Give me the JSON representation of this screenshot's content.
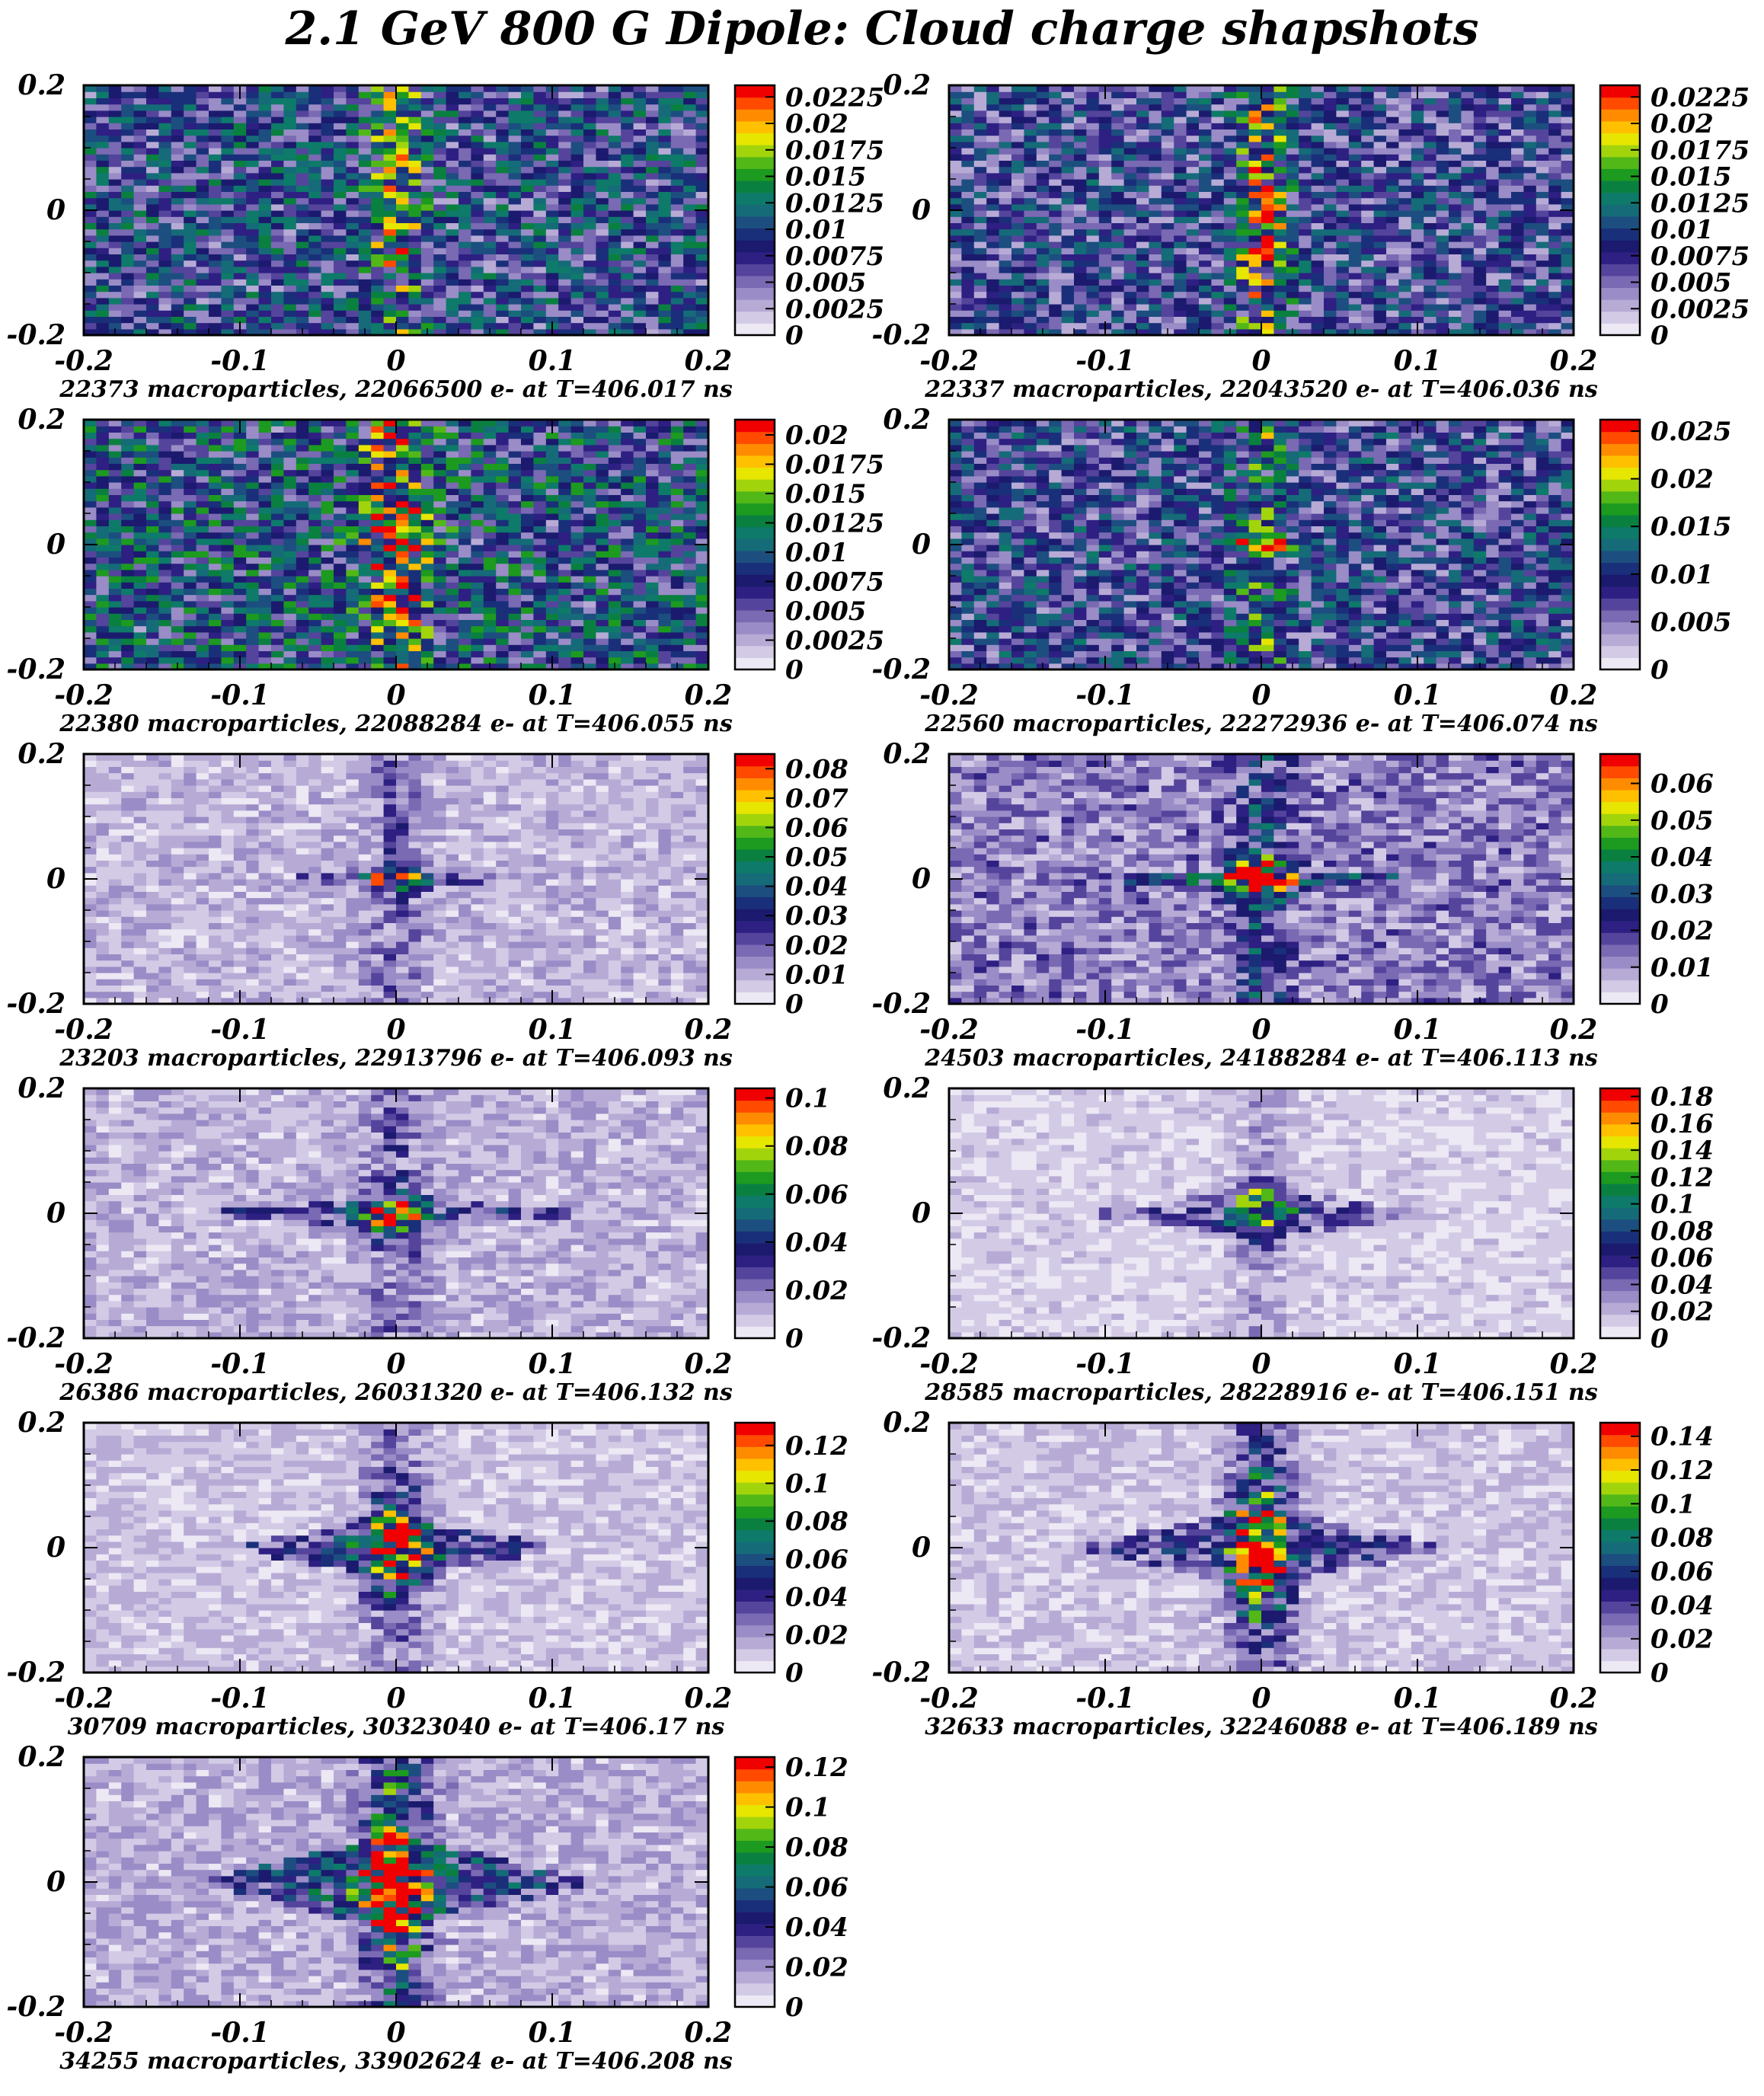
{
  "title": "2.1 GeV 800 G Dipole: Cloud charge shapshots",
  "colors": {
    "palette": [
      "#ffffff",
      "#ece8f4",
      "#d3cbe6",
      "#b7abd6",
      "#9a8cc6",
      "#7a69b3",
      "#55449c",
      "#2e1f82",
      "#1b1a6e",
      "#1a2f7a",
      "#1c4e80",
      "#156b78",
      "#0e7a6a",
      "#0a8040",
      "#1d9a20",
      "#52b818",
      "#a2d40c",
      "#e6e600",
      "#ffc000",
      "#ff8c00",
      "#ff4a00",
      "#f00000"
    ],
    "frame": "#000000"
  },
  "chart_data": [
    {
      "type": "heatmap",
      "x_range": [
        -0.2,
        0.2
      ],
      "y_range": [
        -0.2,
        0.2
      ],
      "x_ticks": [
        "-0.2",
        "-0.1",
        "0",
        "0.1",
        "0.2"
      ],
      "y_ticks": [
        "-0.2",
        "0",
        "0.2"
      ],
      "z_range": [
        0,
        0.0236
      ],
      "z_ticks": [
        "0",
        "0.0025",
        "0.005",
        "0.0075",
        "0.01",
        "0.0125",
        "0.015",
        "0.0175",
        "0.02",
        "0.0225"
      ],
      "caption": "22373 macroparticles, 22066500 e- at T=406.017 ns",
      "macroparticles": 22373,
      "electrons": 22066500,
      "time_ns": 406.017,
      "background_level": 0.0085,
      "stripe_level": 0.005,
      "core_level": 0.002,
      "core_half_height": 0.05,
      "wing_level": 0,
      "wing_half_width": 0.12,
      "wing_half_height": 0.02,
      "seed": 11
    },
    {
      "type": "heatmap",
      "x_range": [
        -0.2,
        0.2
      ],
      "y_range": [
        -0.2,
        0.2
      ],
      "x_ticks": [
        "-0.2",
        "-0.1",
        "0",
        "0.1",
        "0.2"
      ],
      "y_ticks": [
        "-0.2",
        "0",
        "0.2"
      ],
      "z_range": [
        0,
        0.0236
      ],
      "z_ticks": [
        "0",
        "0.0025",
        "0.005",
        "0.0075",
        "0.01",
        "0.0125",
        "0.015",
        "0.0175",
        "0.02",
        "0.0225"
      ],
      "caption": "22337 macroparticles, 22043520 e- at T=406.036 ns",
      "macroparticles": 22337,
      "electrons": 22043520,
      "time_ns": 406.036,
      "background_level": 0.0075,
      "stripe_level": 0.006,
      "core_level": 0.003,
      "core_half_height": 0.08,
      "wing_level": 0,
      "wing_half_width": 0.12,
      "wing_half_height": 0.02,
      "seed": 23
    },
    {
      "type": "heatmap",
      "x_range": [
        -0.2,
        0.2
      ],
      "y_range": [
        -0.2,
        0.2
      ],
      "x_ticks": [
        "-0.2",
        "-0.1",
        "0",
        "0.1",
        "0.2"
      ],
      "y_ticks": [
        "-0.2",
        "0",
        "0.2"
      ],
      "z_range": [
        0,
        0.0213
      ],
      "z_ticks": [
        "0",
        "0.0025",
        "0.005",
        "0.0075",
        "0.01",
        "0.0125",
        "0.015",
        "0.0175",
        "0.02"
      ],
      "caption": "22380 macroparticles, 22088284 e- at T=406.055 ns",
      "macroparticles": 22380,
      "electrons": 22088284,
      "time_ns": 406.055,
      "background_level": 0.0085,
      "stripe_level": 0.0065,
      "core_level": 0.004,
      "core_half_height": 0.06,
      "wing_level": 0,
      "wing_half_width": 0.12,
      "wing_half_height": 0.02,
      "seed": 37
    },
    {
      "type": "heatmap",
      "x_range": [
        -0.2,
        0.2
      ],
      "y_range": [
        -0.2,
        0.2
      ],
      "x_ticks": [
        "-0.2",
        "-0.1",
        "0",
        "0.1",
        "0.2"
      ],
      "y_ticks": [
        "-0.2",
        "0",
        "0.2"
      ],
      "z_range": [
        0,
        0.0262
      ],
      "z_ticks": [
        "0",
        "0.005",
        "0.01",
        "0.015",
        "0.02",
        "0.025"
      ],
      "caption": "22560 macroparticles, 22272936 e- at T=406.074 ns",
      "macroparticles": 22560,
      "electrons": 22272936,
      "time_ns": 406.074,
      "background_level": 0.0085,
      "stripe_level": 0.005,
      "core_level": 0.012,
      "core_half_height": 0.012,
      "wing_level": 0.004,
      "wing_half_width": 0.03,
      "wing_half_height": 0.008,
      "seed": 41
    },
    {
      "type": "heatmap",
      "x_range": [
        -0.2,
        0.2
      ],
      "y_range": [
        -0.2,
        0.2
      ],
      "x_ticks": [
        "-0.2",
        "-0.1",
        "0",
        "0.1",
        "0.2"
      ],
      "y_ticks": [
        "-0.2",
        "0",
        "0.2"
      ],
      "z_range": [
        0,
        0.085
      ],
      "z_ticks": [
        "0",
        "0.01",
        "0.02",
        "0.03",
        "0.04",
        "0.05",
        "0.06",
        "0.07",
        "0.08"
      ],
      "caption": "23203 macroparticles, 22913796 e- at T=406.093 ns",
      "macroparticles": 23203,
      "electrons": 22913796,
      "time_ns": 406.093,
      "background_level": 0.0085,
      "stripe_level": 0.01,
      "core_level": 0.035,
      "core_half_height": 0.012,
      "wing_level": 0.018,
      "wing_half_width": 0.11,
      "wing_half_height": 0.012,
      "seed": 53
    },
    {
      "type": "heatmap",
      "x_range": [
        -0.2,
        0.2
      ],
      "y_range": [
        -0.2,
        0.2
      ],
      "x_ticks": [
        "-0.2",
        "-0.1",
        "0",
        "0.1",
        "0.2"
      ],
      "y_ticks": [
        "-0.2",
        "0",
        "0.2"
      ],
      "z_range": [
        0,
        0.068
      ],
      "z_ticks": [
        "0",
        "0.01",
        "0.02",
        "0.03",
        "0.04",
        "0.05",
        "0.06"
      ],
      "caption": "24503 macroparticles, 24188284 e- at T=406.113 ns",
      "macroparticles": 24503,
      "electrons": 24188284,
      "time_ns": 406.113,
      "background_level": 0.012,
      "stripe_level": 0.012,
      "core_level": 0.048,
      "core_half_height": 0.02,
      "wing_level": 0.02,
      "wing_half_width": 0.13,
      "wing_half_height": 0.016,
      "seed": 67
    },
    {
      "type": "heatmap",
      "x_range": [
        -0.2,
        0.2
      ],
      "y_range": [
        -0.2,
        0.2
      ],
      "x_ticks": [
        "-0.2",
        "-0.1",
        "0",
        "0.1",
        "0.2"
      ],
      "y_ticks": [
        "-0.2",
        "0",
        "0.2"
      ],
      "z_range": [
        0,
        0.104
      ],
      "z_ticks": [
        "0",
        "0.02",
        "0.04",
        "0.06",
        "0.08",
        "0.1"
      ],
      "caption": "26386 macroparticles, 26031320 e- at T=406.132 ns",
      "macroparticles": 26386,
      "electrons": 26031320,
      "time_ns": 406.132,
      "background_level": 0.011,
      "stripe_level": 0.012,
      "core_level": 0.06,
      "core_half_height": 0.025,
      "wing_level": 0.026,
      "wing_half_width": 0.14,
      "wing_half_height": 0.025,
      "seed": 71
    },
    {
      "type": "heatmap",
      "x_range": [
        -0.2,
        0.2
      ],
      "y_range": [
        -0.2,
        0.2
      ],
      "x_ticks": [
        "-0.2",
        "-0.1",
        "0",
        "0.1",
        "0.2"
      ],
      "y_ticks": [
        "-0.2",
        "0",
        "0.2"
      ],
      "z_range": [
        0,
        0.186
      ],
      "z_ticks": [
        "0",
        "0.02",
        "0.04",
        "0.06",
        "0.08",
        "0.1",
        "0.12",
        "0.14",
        "0.16",
        "0.18"
      ],
      "caption": "28585 macroparticles, 28228916 e- at T=406.151 ns",
      "macroparticles": 28585,
      "electrons": 28228916,
      "time_ns": 406.151,
      "background_level": 0.012,
      "stripe_level": 0.014,
      "core_level": 0.09,
      "core_half_height": 0.03,
      "wing_level": 0.04,
      "wing_half_width": 0.12,
      "wing_half_height": 0.04,
      "seed": 89
    },
    {
      "type": "heatmap",
      "x_range": [
        -0.2,
        0.2
      ],
      "y_range": [
        -0.2,
        0.2
      ],
      "x_ticks": [
        "-0.2",
        "-0.1",
        "0",
        "0.1",
        "0.2"
      ],
      "y_ticks": [
        "-0.2",
        "0",
        "0.2"
      ],
      "z_range": [
        0,
        0.132
      ],
      "z_ticks": [
        "0",
        "0.02",
        "0.04",
        "0.06",
        "0.08",
        "0.1",
        "0.12"
      ],
      "caption": "30709 macroparticles, 30323040 e- at T=406.17 ns",
      "macroparticles": 30709,
      "electrons": 30323040,
      "time_ns": 406.17,
      "background_level": 0.011,
      "stripe_level": 0.012,
      "core_level": 0.075,
      "core_half_height": 0.06,
      "wing_level": 0.04,
      "wing_half_width": 0.11,
      "wing_half_height": 0.05,
      "seed": 97
    },
    {
      "type": "heatmap",
      "x_range": [
        -0.2,
        0.2
      ],
      "y_range": [
        -0.2,
        0.2
      ],
      "x_ticks": [
        "-0.2",
        "-0.1",
        "0",
        "0.1",
        "0.2"
      ],
      "y_ticks": [
        "-0.2",
        "0",
        "0.2"
      ],
      "z_range": [
        0,
        0.148
      ],
      "z_ticks": [
        "0",
        "0.02",
        "0.04",
        "0.06",
        "0.08",
        "0.1",
        "0.12",
        "0.14"
      ],
      "caption": "32633 macroparticles, 32246088 e- at T=406.189 ns",
      "macroparticles": 32633,
      "electrons": 32246088,
      "time_ns": 406.189,
      "background_level": 0.012,
      "stripe_level": 0.012,
      "core_level": 0.075,
      "core_half_height": 0.1,
      "wing_level": 0.04,
      "wing_half_width": 0.12,
      "wing_half_height": 0.07,
      "seed": 103
    },
    {
      "type": "heatmap",
      "x_range": [
        -0.2,
        0.2
      ],
      "y_range": [
        -0.2,
        0.2
      ],
      "x_ticks": [
        "-0.2",
        "-0.1",
        "0",
        "0.1",
        "0.2"
      ],
      "y_ticks": [
        "-0.2",
        "0",
        "0.2"
      ],
      "z_range": [
        0,
        0.125
      ],
      "z_ticks": [
        "0",
        "0.02",
        "0.04",
        "0.06",
        "0.08",
        "0.1",
        "0.12"
      ],
      "caption": "34255 macroparticles, 33902624 e- at T=406.208 ns",
      "macroparticles": 34255,
      "electrons": 33902624,
      "time_ns": 406.208,
      "background_level": 0.014,
      "stripe_level": 0.012,
      "core_level": 0.07,
      "core_half_height": 0.12,
      "wing_level": 0.045,
      "wing_half_width": 0.13,
      "wing_half_height": 0.08,
      "seed": 113
    }
  ]
}
